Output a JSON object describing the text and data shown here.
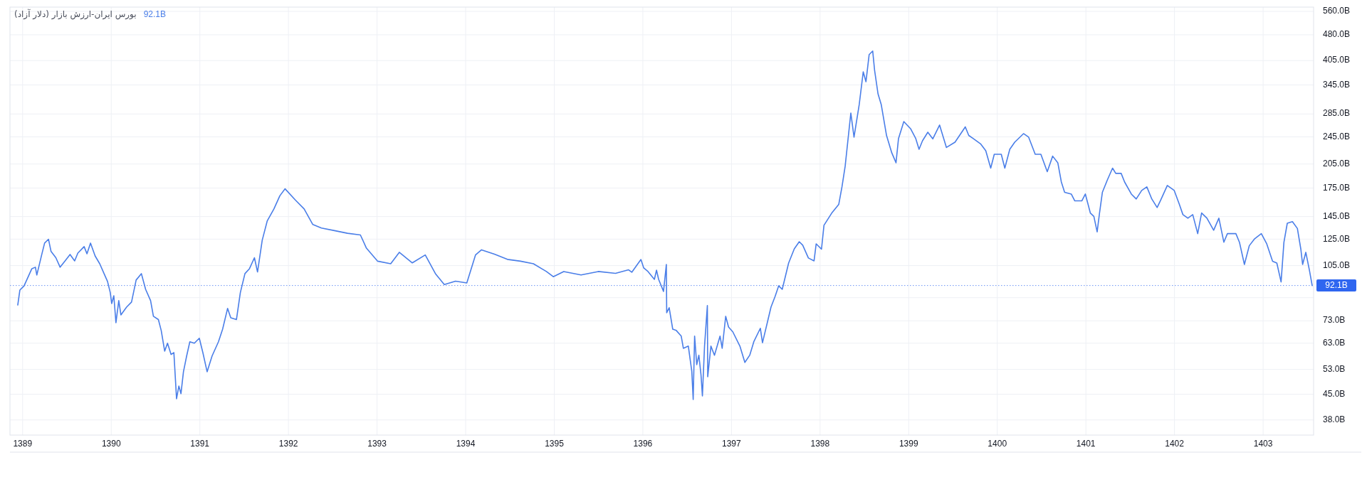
{
  "chart_data": {
    "type": "line",
    "title": "بورس ایران-ارزش بازار (دلار آزاد)",
    "annotations": [
      "92.1B"
    ],
    "x": [
      1388.945,
      1388.969,
      1389.016,
      1389.104,
      1389.144,
      1389.16,
      1389.216,
      1389.248,
      1389.292,
      1389.32,
      1389.375,
      1389.423,
      1389.479,
      1389.535,
      1389.587,
      1389.623,
      1389.694,
      1389.726,
      1389.766,
      1389.818,
      1389.87,
      1389.926,
      1389.958,
      1389.989,
      1390.005,
      1390.029,
      1390.053,
      1390.085,
      1390.109,
      1390.173,
      1390.229,
      1390.281,
      1390.34,
      1390.388,
      1390.444,
      1390.476,
      1390.532,
      1390.564,
      1390.603,
      1390.635,
      1390.675,
      1390.707,
      1390.737,
      1390.763,
      1390.787,
      1390.815,
      1390.851,
      1390.887,
      1390.938,
      1390.994,
      1391.034,
      1391.082,
      1391.138,
      1391.21,
      1391.257,
      1391.313,
      1391.349,
      1391.413,
      1391.457,
      1391.509,
      1391.56,
      1391.616,
      1391.651,
      1391.704,
      1391.76,
      1391.836,
      1391.903,
      1391.962,
      1392.079,
      1392.177,
      1392.275,
      1392.372,
      1392.519,
      1392.666,
      1392.812,
      1392.88,
      1393.007,
      1393.154,
      1393.251,
      1393.398,
      1393.544,
      1393.662,
      1393.759,
      1393.886,
      1394.013,
      1394.111,
      1394.179,
      1394.325,
      1394.471,
      1394.619,
      1394.765,
      1394.911,
      1394.989,
      1395.107,
      1395.302,
      1395.497,
      1395.691,
      1395.839,
      1395.875,
      1395.978,
      1396.01,
      1396.058,
      1396.13,
      1396.154,
      1396.178,
      1396.233,
      1396.265,
      1396.269,
      1396.297,
      1396.337,
      1396.377,
      1396.433,
      1396.457,
      1396.513,
      1396.552,
      1396.568,
      1396.584,
      1396.608,
      1396.632,
      1396.656,
      1396.672,
      1396.696,
      1396.728,
      1396.732,
      1396.768,
      1396.808,
      1396.871,
      1396.895,
      1396.935,
      1396.967,
      1397.015,
      1397.095,
      1397.151,
      1397.206,
      1397.254,
      1397.326,
      1397.35,
      1397.406,
      1397.446,
      1397.493,
      1397.533,
      1397.573,
      1397.645,
      1397.709,
      1397.765,
      1397.804,
      1397.868,
      1397.932,
      1397.956,
      1398.016,
      1398.044,
      1398.131,
      1398.211,
      1398.247,
      1398.283,
      1398.347,
      1398.383,
      1398.442,
      1398.487,
      1398.518,
      1398.554,
      1398.594,
      1398.615,
      1398.654,
      1398.69,
      1398.75,
      1398.809,
      1398.857,
      1398.885,
      1398.945,
      1399.021,
      1399.08,
      1399.117,
      1399.156,
      1399.216,
      1399.272,
      1399.349,
      1399.426,
      1399.523,
      1399.639,
      1399.678,
      1399.734,
      1399.814,
      1399.87,
      1399.926,
      1399.966,
      1400.045,
      1400.085,
      1400.141,
      1400.197,
      1400.296,
      1400.354,
      1400.428,
      1400.492,
      1400.564,
      1400.625,
      1400.683,
      1400.723,
      1400.76,
      1400.835,
      1400.875,
      1400.954,
      1400.994,
      1401.05,
      1401.09,
      1401.127,
      1401.154,
      1401.186,
      1401.241,
      1401.301,
      1401.337,
      1401.398,
      1401.437,
      1401.513,
      1401.568,
      1401.63,
      1401.688,
      1401.744,
      1401.804,
      1401.84,
      1401.919,
      1401.997,
      1402.055,
      1402.095,
      1402.151,
      1402.206,
      1402.262,
      1402.306,
      1402.366,
      1402.442,
      1402.501,
      1402.557,
      1402.597,
      1402.693,
      1402.733,
      1402.789,
      1402.844,
      1402.905,
      1402.98,
      1403.041,
      1403.107,
      1403.155,
      1403.203,
      1403.235,
      1403.273,
      1403.331,
      1403.387,
      1403.426,
      1403.446,
      1403.482,
      1403.522,
      1403.554
    ],
    "series": [
      {
        "color": "#4a7ee8",
        "values": [
          81.0,
          89.4,
          91.9,
          102.9,
          103.9,
          98.7,
          113.0,
          121.8,
          124.9,
          115.4,
          110.6,
          103.9,
          108.3,
          113.0,
          108.3,
          114.0,
          119.0,
          113.5,
          121.8,
          111.9,
          106.3,
          98.7,
          94.6,
          87.9,
          81.8,
          86.1,
          72.1,
          83.4,
          75.9,
          79.9,
          82.6,
          95.5,
          99.6,
          89.8,
          83.4,
          75.2,
          73.6,
          68.5,
          59.8,
          63.0,
          58.5,
          59.2,
          43.7,
          47.5,
          45.2,
          52.2,
          57.9,
          63.6,
          63.0,
          65.1,
          59.2,
          52.2,
          57.9,
          63.6,
          69.1,
          79.2,
          74.5,
          73.6,
          87.9,
          99.6,
          102.9,
          110.6,
          100.7,
          124.1,
          140.8,
          152.5,
          166.3,
          174.1,
          161.6,
          152.5,
          137.6,
          134.5,
          132.2,
          129.9,
          128.5,
          117.8,
          108.1,
          106.3,
          114.6,
          106.9,
          112.6,
          99.3,
          92.7,
          94.8,
          93.7,
          112.6,
          116.5,
          113.2,
          109.4,
          108.1,
          106.3,
          101.0,
          97.6,
          101.0,
          98.7,
          101.0,
          99.8,
          102.1,
          100.5,
          109.3,
          103.4,
          101.0,
          95.9,
          101.9,
          95.9,
          88.6,
          105.8,
          77.0,
          79.6,
          69.1,
          68.5,
          66.0,
          60.9,
          61.8,
          52.4,
          43.5,
          66.0,
          54.7,
          58.2,
          51.2,
          44.5,
          61.8,
          80.7,
          50.5,
          61.8,
          58.2,
          66.0,
          60.9,
          75.2,
          70.1,
          67.9,
          61.8,
          55.5,
          58.2,
          63.8,
          69.5,
          63.2,
          72.4,
          79.9,
          85.8,
          91.9,
          89.8,
          106.8,
          117.3,
          122.9,
          120.1,
          110.4,
          108.3,
          121.2,
          117.0,
          136.9,
          148.3,
          157.2,
          176.3,
          201.9,
          286.8,
          244.6,
          303.4,
          376.2,
          352.4,
          421.5,
          431.3,
          380.6,
          325.4,
          303.4,
          247.4,
          220.7,
          206.7,
          242.3,
          271.1,
          258.7,
          242.3,
          225.9,
          238.9,
          252.7,
          241.9,
          264.9,
          228.6,
          236.7,
          261.8,
          247.4,
          241.9,
          233.7,
          223.8,
          199.5,
          218.6,
          218.6,
          199.5,
          225.9,
          236.7,
          250.4,
          244.6,
          218.6,
          218.6,
          194.9,
          215.9,
          206.7,
          182.1,
          170.1,
          168.2,
          160.8,
          160.8,
          168.2,
          148.5,
          145.2,
          131.1,
          148.5,
          170.1,
          184.2,
          199.5,
          192.7,
          192.7,
          182.1,
          168.2,
          162.8,
          172.2,
          176.3,
          162.8,
          153.9,
          160.8,
          178.0,
          172.2,
          157.2,
          146.9,
          143.5,
          146.9,
          129.6,
          148.5,
          143.5,
          132.5,
          143.5,
          122.5,
          129.6,
          129.6,
          122.5,
          105.8,
          119.7,
          125.3,
          129.6,
          121.2,
          108.1,
          106.8,
          94.3,
          122.4,
          138.8,
          140.3,
          134.1,
          117.0,
          105.8,
          114.6,
          102.1,
          92.1
        ]
      }
    ],
    "log": true,
    "xlim": [
      1388.857,
      1403.57
    ],
    "xticks": [
      1389,
      1390,
      1391,
      1392,
      1393,
      1394,
      1395,
      1396,
      1397,
      1398,
      1399,
      1400,
      1401,
      1402,
      1403
    ],
    "ylim": [
      34.4,
      576
    ],
    "yticks": [
      {
        "value": 38,
        "label": "38.0B"
      },
      {
        "value": 45,
        "label": "45.0B"
      },
      {
        "value": 53,
        "label": "53.0B"
      },
      {
        "value": 63,
        "label": "63.0B"
      },
      {
        "value": 73,
        "label": "73.0B"
      },
      {
        "value": 85,
        "label": null
      },
      {
        "value": 105,
        "label": "105.0B"
      },
      {
        "value": 125,
        "label": "125.0B"
      },
      {
        "value": 145,
        "label": "145.0B"
      },
      {
        "value": 175,
        "label": "175.0B"
      },
      {
        "value": 205,
        "label": "205.0B"
      },
      {
        "value": 245,
        "label": "245.0B"
      },
      {
        "value": 285,
        "label": "285.0B"
      },
      {
        "value": 345,
        "label": "345.0B"
      },
      {
        "value": 405,
        "label": "405.0B"
      },
      {
        "value": 480,
        "label": "480.0B"
      },
      {
        "value": 560,
        "label": "560.0B"
      }
    ],
    "grid": true,
    "ref_lines": [
      {
        "axis": "y",
        "value": 92.1,
        "label": "92.1B",
        "color": "#2f66f0",
        "line_style": "dotted"
      }
    ]
  }
}
